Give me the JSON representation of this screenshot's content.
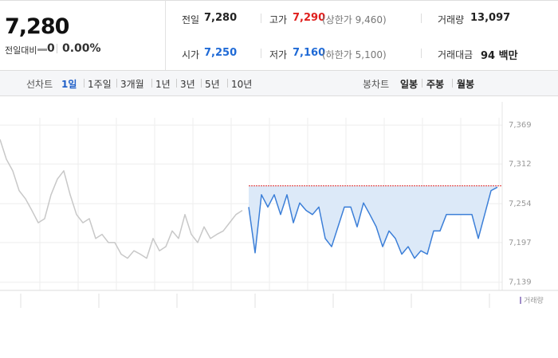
{
  "header": {
    "price": "7,280",
    "change_label": "전일대비",
    "change": "0",
    "change_rate": "0.00%"
  },
  "info": {
    "prev": {
      "label": "전일",
      "value": "7,280"
    },
    "high": {
      "label": "고가",
      "value": "7,290",
      "note": "(상한가 9,460)"
    },
    "volume": {
      "label": "거래량",
      "value": "13,097"
    },
    "open": {
      "label": "시가",
      "value": "7,250"
    },
    "low": {
      "label": "저가",
      "value": "7,160",
      "note": "(하한가 5,100)"
    },
    "amount": {
      "label": "거래대금",
      "value": "94 백만"
    }
  },
  "tabs": {
    "line_label": "선차트",
    "line_periods": [
      "1일",
      "1주일",
      "3개월",
      "1년",
      "3년",
      "5년",
      "10년"
    ],
    "candle_label": "봉차트",
    "candle_periods": [
      "일봉",
      "주봉",
      "월봉"
    ]
  },
  "chart_data": {
    "type": "line",
    "series": [
      {
        "color": "#c8c8c8",
        "values": [
          7348,
          7319,
          7302,
          7273,
          7261,
          7244,
          7226,
          7232,
          7267,
          7290,
          7302,
          7267,
          7238,
          7226,
          7232,
          7203,
          7209,
          7197,
          7197,
          7180,
          7174,
          7185,
          7180,
          7174,
          7203,
          7185,
          7191,
          7214,
          7203,
          7238,
          7209,
          7197,
          7220,
          7203,
          7209,
          7214,
          7226,
          7238,
          7244,
          null,
          null,
          null,
          null,
          null,
          null,
          null,
          null,
          null,
          null,
          null,
          null,
          null,
          null,
          null,
          null,
          null,
          null,
          null,
          null,
          null,
          null,
          null,
          null,
          null,
          null,
          null,
          null,
          null,
          null,
          null,
          null,
          null,
          null,
          null,
          null,
          null,
          null,
          null,
          null
        ]
      },
      {
        "color": "#3c7fd8",
        "values": [
          null,
          null,
          null,
          null,
          null,
          null,
          null,
          null,
          null,
          null,
          null,
          null,
          null,
          null,
          null,
          null,
          null,
          null,
          null,
          null,
          null,
          null,
          null,
          null,
          null,
          null,
          null,
          null,
          null,
          null,
          null,
          null,
          null,
          null,
          null,
          null,
          null,
          null,
          null,
          7249,
          7182,
          7267,
          7249,
          7267,
          7238,
          7267,
          7226,
          7255,
          7244,
          7238,
          7249,
          7203,
          7191,
          7220,
          7249,
          7249,
          7220,
          7255,
          7238,
          7220,
          7191,
          7214,
          7203,
          7180,
          7191,
          7174,
          7185,
          7180,
          7214,
          7214,
          7238,
          7238,
          7238,
          7238,
          7238,
          7203,
          7238,
          7273,
          7278
        ]
      }
    ],
    "baseline": 7280,
    "baseline_color": "#e03030",
    "area_color": "#dce9f8",
    "ylim": [
      7127,
      7403
    ],
    "yticks": [
      {
        "value": 7139,
        "label": "7,139"
      },
      {
        "value": 7197,
        "label": "7,197"
      },
      {
        "value": 7254,
        "label": "7,254"
      },
      {
        "value": 7312,
        "label": "7,312"
      },
      {
        "value": 7369,
        "label": "7,369"
      }
    ],
    "grid": true,
    "volume_label": "거래량"
  }
}
